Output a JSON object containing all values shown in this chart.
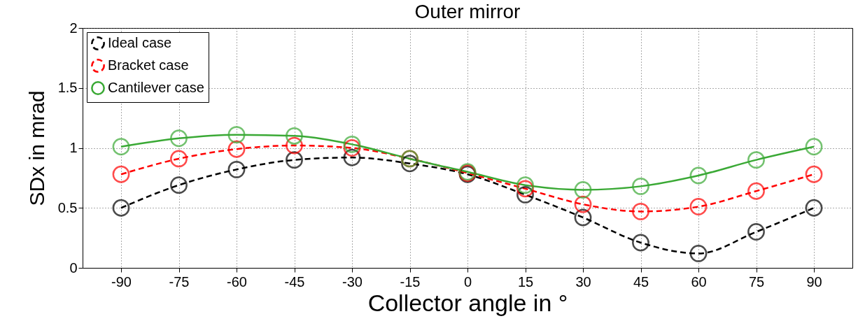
{
  "chart_data": {
    "type": "line",
    "title": "Outer mirror",
    "xlabel": "Collector angle in °",
    "ylabel": "SDx in mrad",
    "x": [
      -90,
      -75,
      -60,
      -45,
      -30,
      -15,
      0,
      15,
      30,
      45,
      60,
      75,
      90
    ],
    "xlim": [
      -100,
      100
    ],
    "xticks": [
      -90,
      -75,
      -60,
      -45,
      -30,
      -15,
      0,
      15,
      30,
      45,
      60,
      75,
      90
    ],
    "ylim": [
      0,
      2
    ],
    "yticks": [
      0,
      0.5,
      1,
      1.5,
      2
    ],
    "grid": true,
    "legend": "top left",
    "marker": "circle",
    "series": [
      {
        "name": "Ideal case",
        "color": "#000000",
        "line_style": "dashed",
        "values": [
          0.5,
          0.69,
          0.82,
          0.9,
          0.92,
          0.87,
          0.78,
          0.61,
          0.42,
          0.21,
          0.12,
          0.3,
          0.5
        ]
      },
      {
        "name": "Bracket case",
        "color": "#ff0000",
        "line_style": "dashed",
        "values": [
          0.78,
          0.91,
          0.99,
          1.02,
          1.0,
          0.91,
          0.79,
          0.66,
          0.53,
          0.47,
          0.51,
          0.64,
          0.78
        ]
      },
      {
        "name": "Cantilever case",
        "color": "#3aa935",
        "line_style": "solid",
        "values": [
          1.01,
          1.08,
          1.11,
          1.1,
          1.03,
          0.91,
          0.8,
          0.69,
          0.65,
          0.68,
          0.77,
          0.9,
          1.01
        ]
      }
    ]
  }
}
